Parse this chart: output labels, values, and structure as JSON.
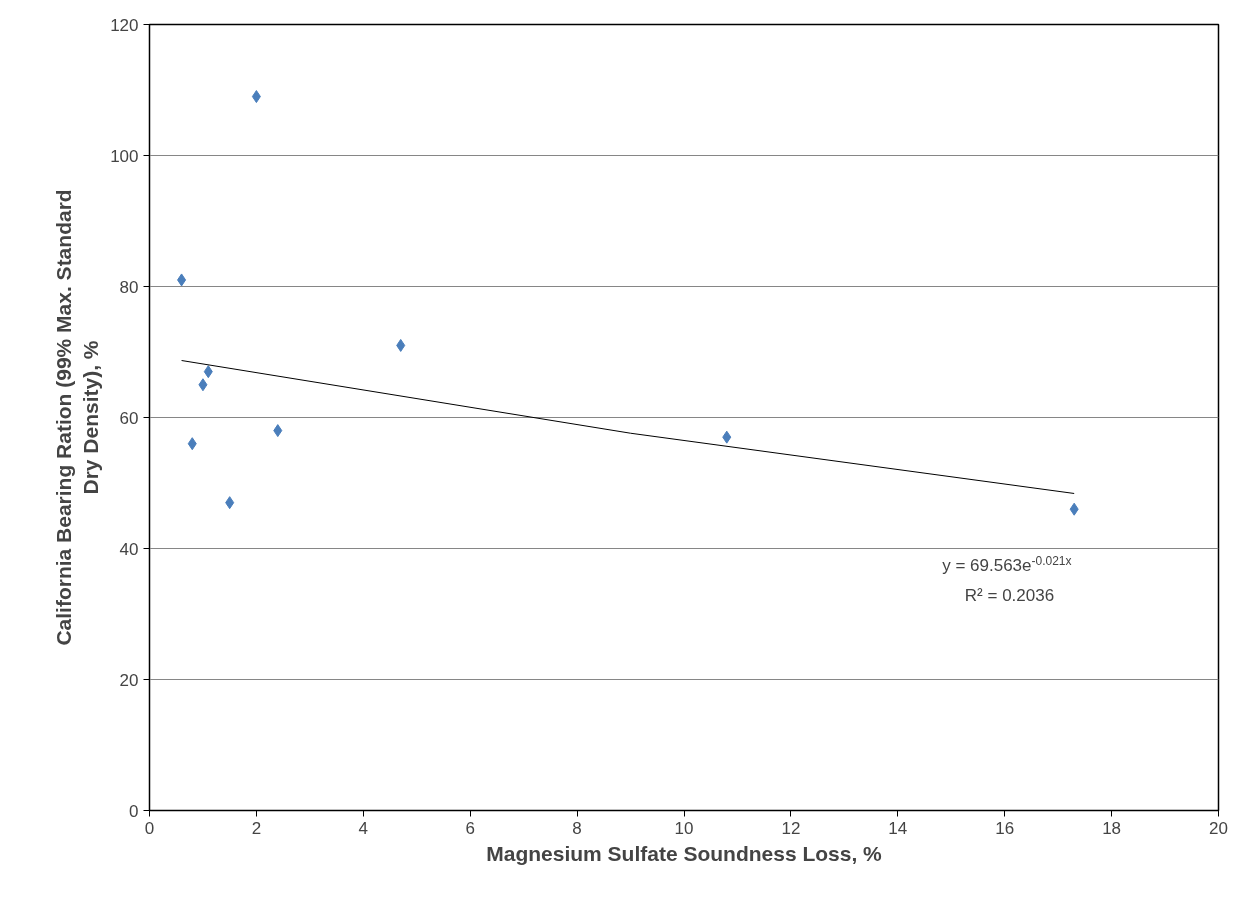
{
  "chart_data": {
    "type": "scatter",
    "xlabel": "Magnesium Sulfate Soundness Loss, %",
    "ylabel": "California Bearing Ration (99% Max. Standard\nDry Density), %",
    "xlim": [
      0,
      20
    ],
    "xticks": [
      0,
      2,
      4,
      6,
      8,
      10,
      12,
      14,
      16,
      18,
      20
    ],
    "ylim": [
      0,
      120
    ],
    "yticks": [
      0,
      20,
      40,
      60,
      80,
      100,
      120
    ],
    "grid": "y",
    "marker": "diamond",
    "series": [
      {
        "color": "#4a7ebb",
        "x": [
          0.6,
          2.0,
          4.7,
          1.1,
          1.0,
          0.8,
          2.4,
          1.5,
          10.8,
          17.3
        ],
        "values": [
          81,
          109,
          71,
          67,
          65,
          56,
          58,
          47,
          57,
          46
        ]
      },
      {
        "type": "line",
        "marker": "none",
        "color": "#000000",
        "x": [
          0.6,
          9,
          17.3
        ],
        "values": [
          68.7,
          57.6,
          48.4
        ]
      }
    ],
    "annotations": [
      "y = 69.563e$^{-0.021x}$",
      "R² = 0.2036"
    ]
  }
}
